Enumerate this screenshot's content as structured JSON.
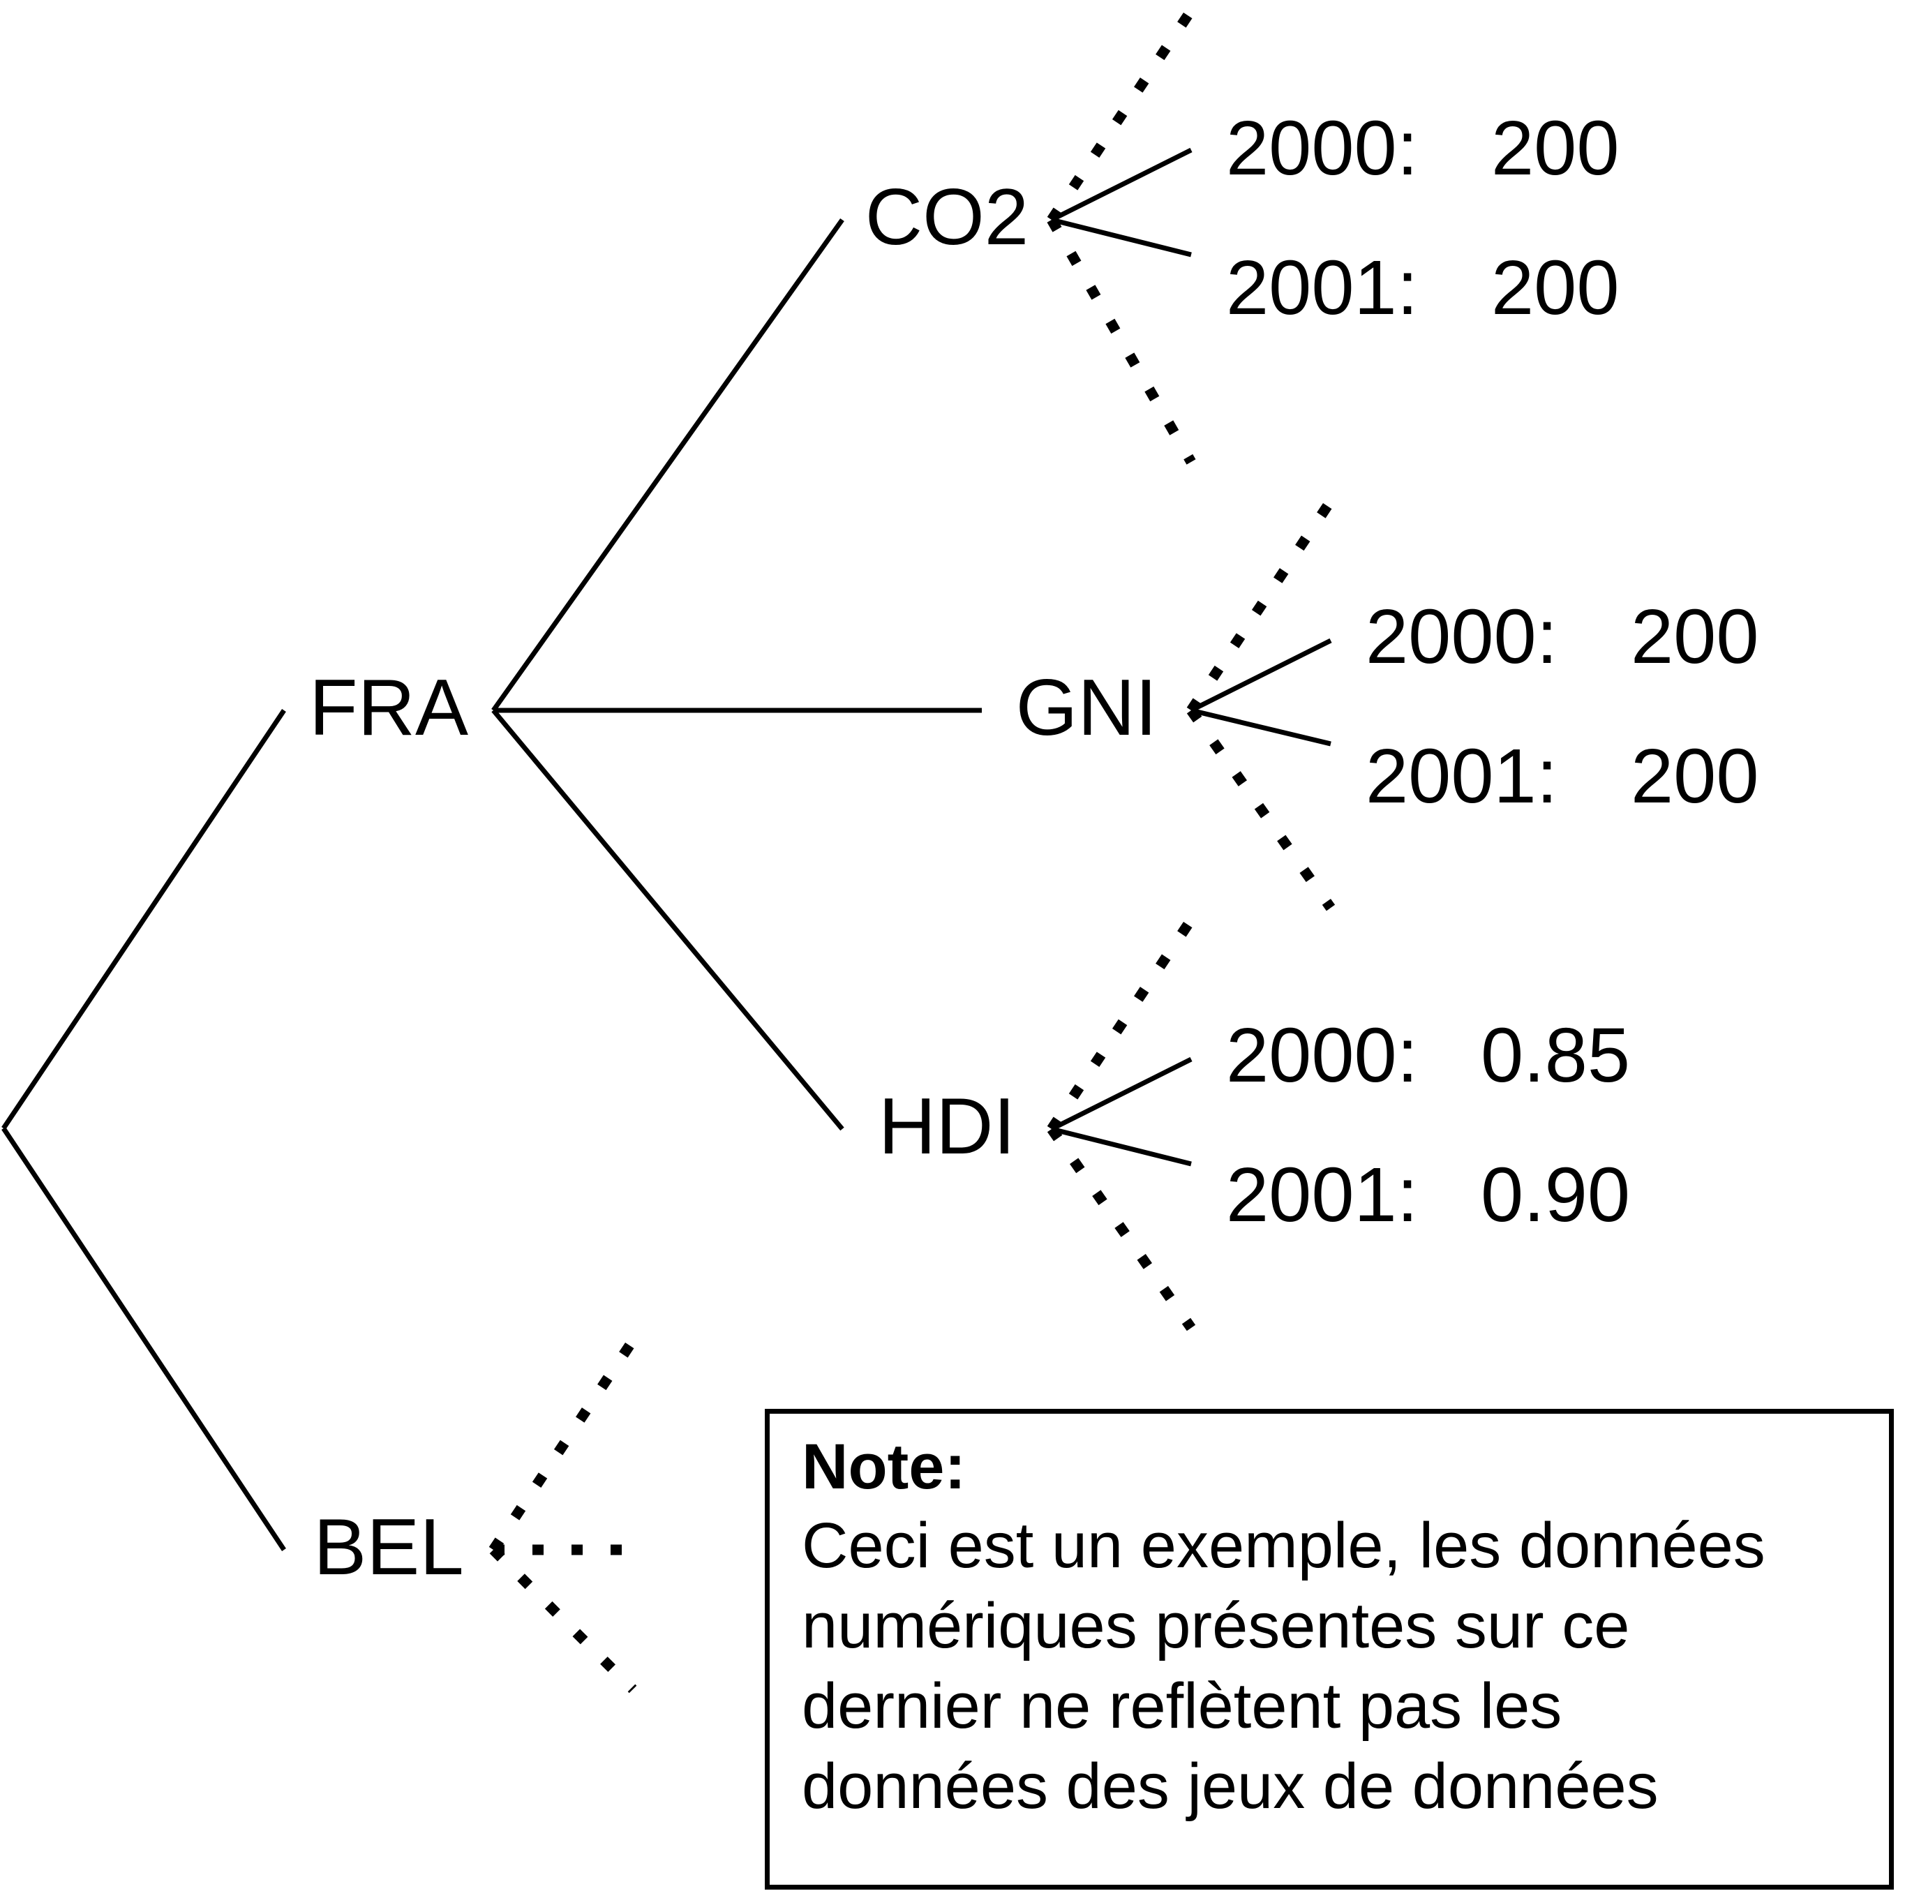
{
  "tree": {
    "countries": [
      {
        "code": "FRA"
      },
      {
        "code": "BEL"
      }
    ],
    "indicators": [
      {
        "name": "CO2",
        "values": [
          {
            "year": "2000:",
            "value": "200"
          },
          {
            "year": "2001:",
            "value": "200"
          }
        ]
      },
      {
        "name": "GNI",
        "values": [
          {
            "year": "2000:",
            "value": "200"
          },
          {
            "year": "2001:",
            "value": "200"
          }
        ]
      },
      {
        "name": "HDI",
        "values": [
          {
            "year": "2000:",
            "value": "0.85"
          },
          {
            "year": "2001:",
            "value": "0.90"
          }
        ]
      }
    ]
  },
  "note": {
    "title": "Note:",
    "lines": [
      "Ceci est un exemple, les données",
      "numériques présentes sur ce",
      "dernier ne reflètent pas les",
      "données des jeux de données"
    ]
  },
  "colors": {
    "ink": "#000000",
    "background": "#ffffff"
  }
}
